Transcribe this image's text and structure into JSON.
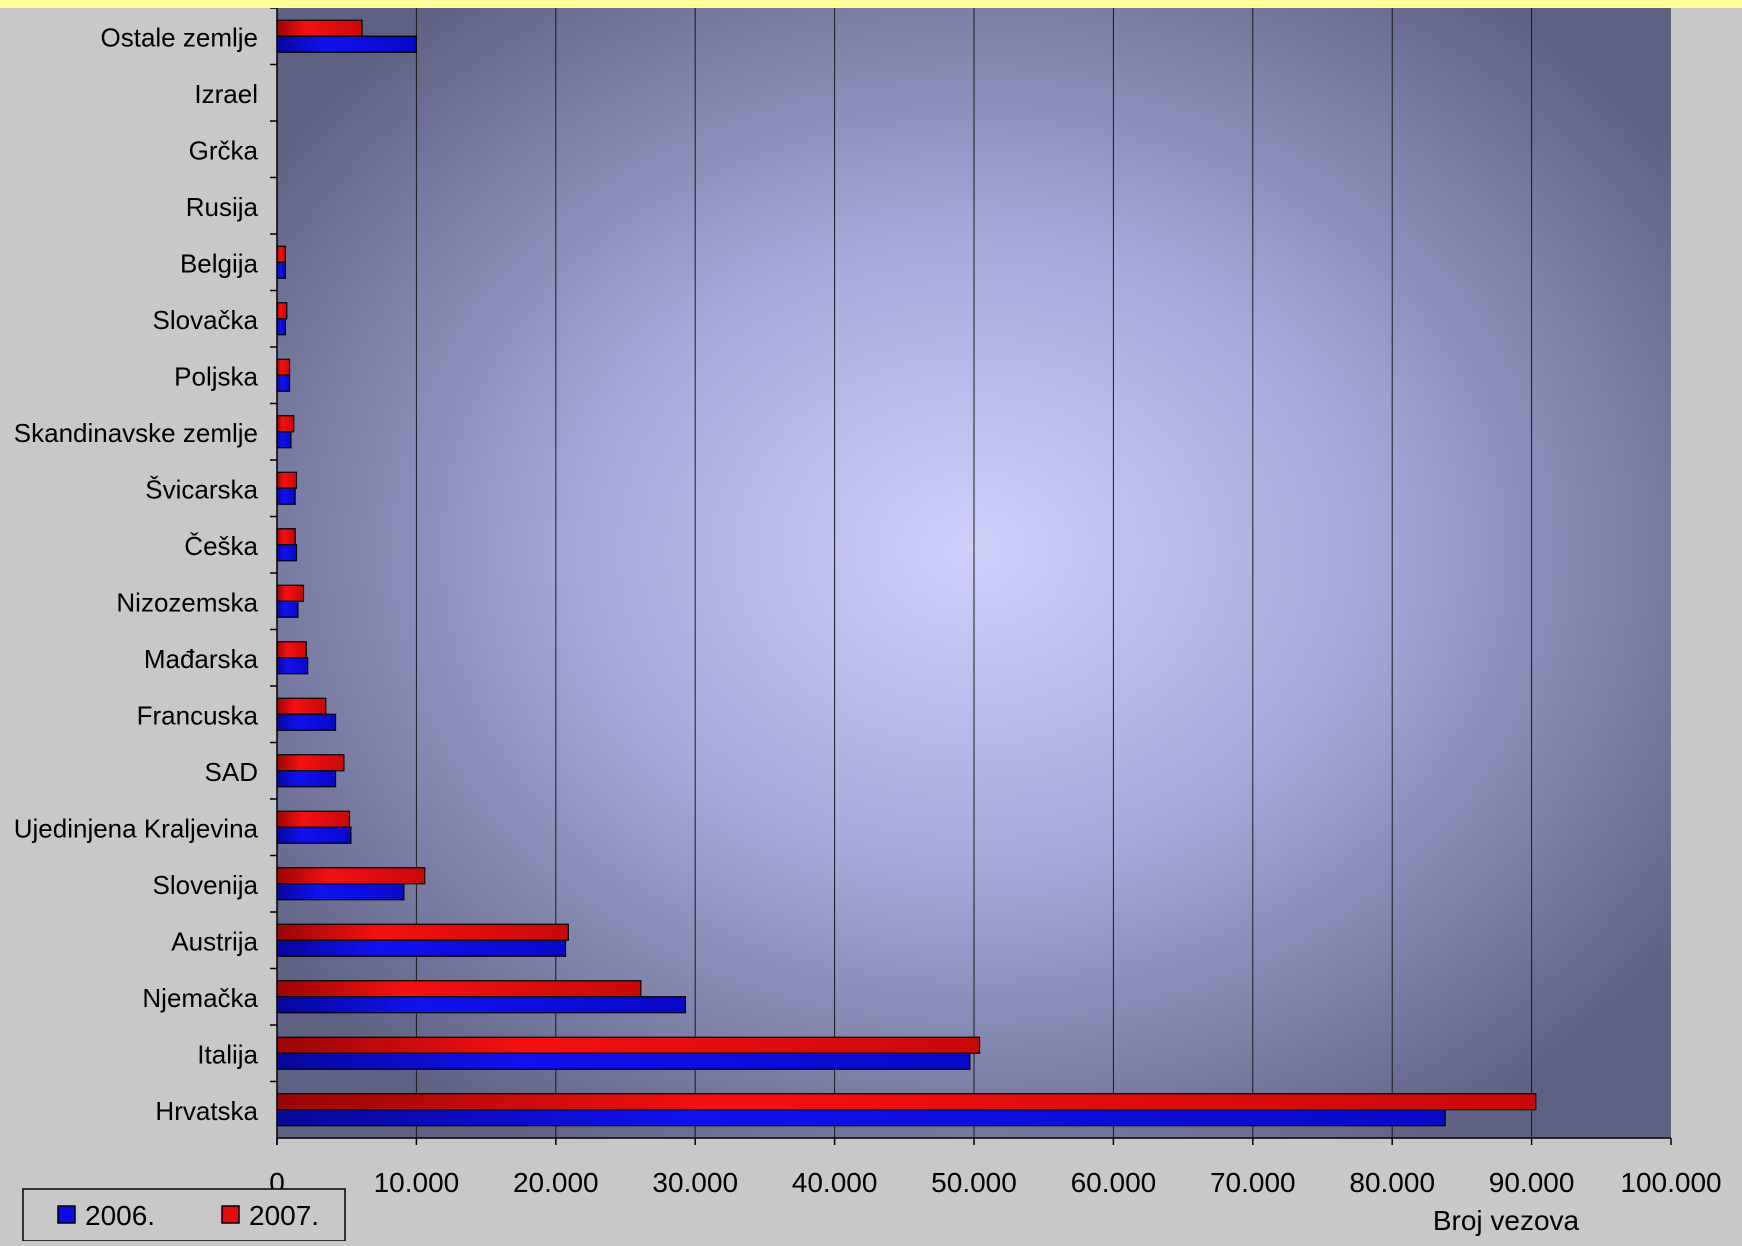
{
  "chart_data": {
    "type": "bar",
    "orientation": "horizontal",
    "categories": [
      "Hrvatska",
      "Italija",
      "Njemačka",
      "Austrija",
      "Slovenija",
      "Ujedinjena Kraljevina",
      "SAD",
      "Francuska",
      "Mađarska",
      "Nizozemska",
      "Češka",
      "Švicarska",
      "Skandinavske zemlje",
      "Poljska",
      "Slovačka",
      "Belgija",
      "Rusija",
      "Grčka",
      "Izrael",
      "Ostale zemlje"
    ],
    "series": [
      {
        "name": "2006.",
        "color": "#0a0ae6",
        "values": [
          83800,
          49700,
          29300,
          20700,
          9100,
          5300,
          4200,
          4200,
          2200,
          1500,
          1400,
          1300,
          1000,
          900,
          600,
          600,
          0,
          0,
          0,
          10000
        ]
      },
      {
        "name": "2007.",
        "color": "#e60a0a",
        "values": [
          90300,
          50400,
          26100,
          20900,
          10600,
          5200,
          4800,
          3500,
          2100,
          1900,
          1300,
          1400,
          1200,
          900,
          700,
          600,
          0,
          0,
          0,
          6100
        ]
      }
    ],
    "xlabel": "Broj vezova",
    "xlim": [
      0,
      100000
    ],
    "xticks": [
      "0",
      "10.000",
      "20.000",
      "30.000",
      "40.000",
      "50.000",
      "60.000",
      "70.000",
      "80.000",
      "90.000",
      "100.000"
    ],
    "grid": "vertical",
    "legend": "bottom-left"
  }
}
